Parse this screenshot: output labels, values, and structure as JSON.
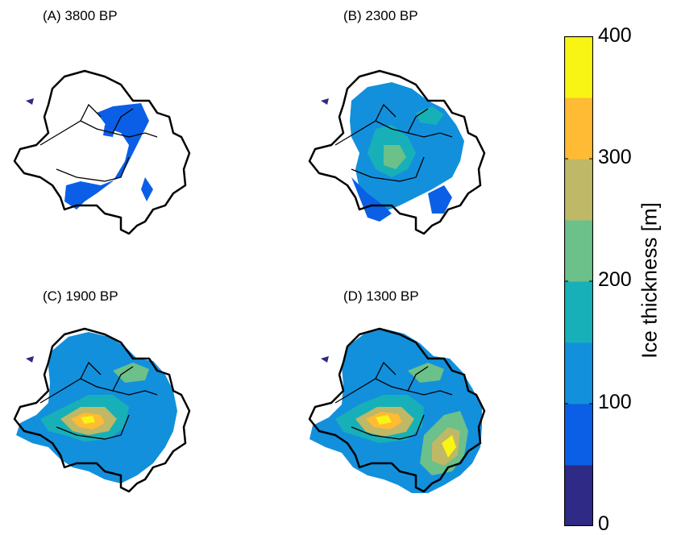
{
  "panels": [
    {
      "id": "a",
      "title": "(A) 3800 BP"
    },
    {
      "id": "b",
      "title": "(B) 2300 BP"
    },
    {
      "id": "c",
      "title": "(C) 1900 BP"
    },
    {
      "id": "d",
      "title": "(D) 1300 BP"
    }
  ],
  "colorbar": {
    "label": "Ice thickness [m]",
    "ticks": [
      "0",
      "100",
      "200",
      "300",
      "400"
    ],
    "range": [
      0,
      400
    ],
    "bands": [
      "#2e2a86",
      "#0a5fe6",
      "#1290dc",
      "#17b0b8",
      "#6cc08a",
      "#bfb866",
      "#ffbb33",
      "#f8f514"
    ]
  }
}
